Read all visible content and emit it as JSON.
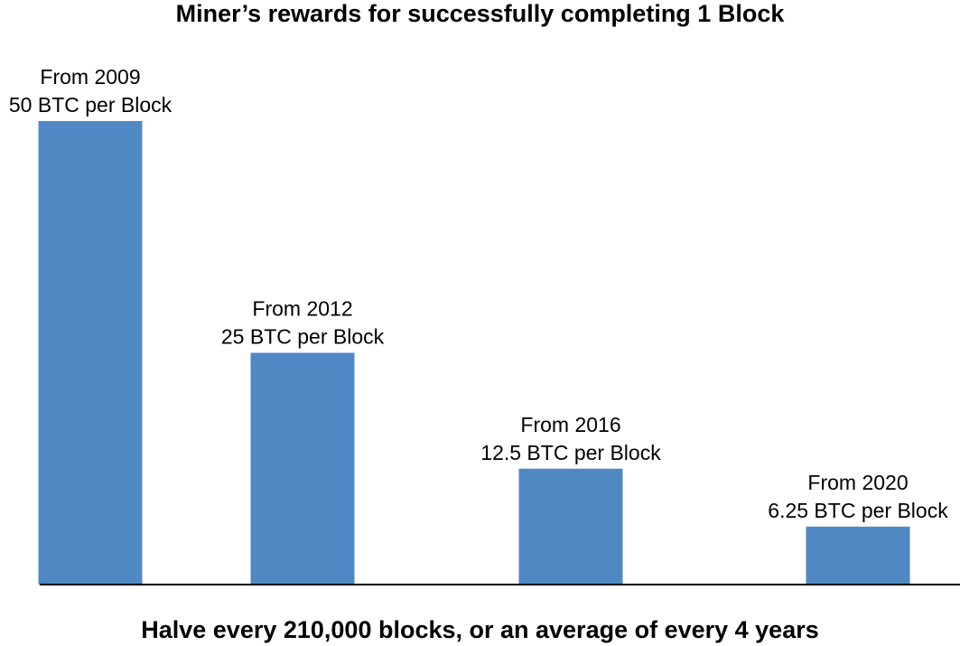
{
  "title": "Miner’s rewards for successfully completing 1 Block",
  "footer": "Halve every 210,000 blocks, or an average of every 4 years",
  "colors": {
    "bar": "#5088c4",
    "axis": "#000000"
  },
  "chart_data": {
    "type": "bar",
    "title": "Miner’s rewards for successfully completing 1 Block",
    "xlabel": "",
    "ylabel": "",
    "ylim": [
      0,
      50
    ],
    "grid": false,
    "categories": [
      "From 2009",
      "From 2012",
      "From 2016",
      "From 2020"
    ],
    "values": [
      50,
      25,
      12.5,
      6.25
    ],
    "value_labels": [
      "50 BTC per Block",
      "25 BTC per Block",
      "12.5 BTC per Block",
      "6.25 BTC per Block"
    ]
  }
}
